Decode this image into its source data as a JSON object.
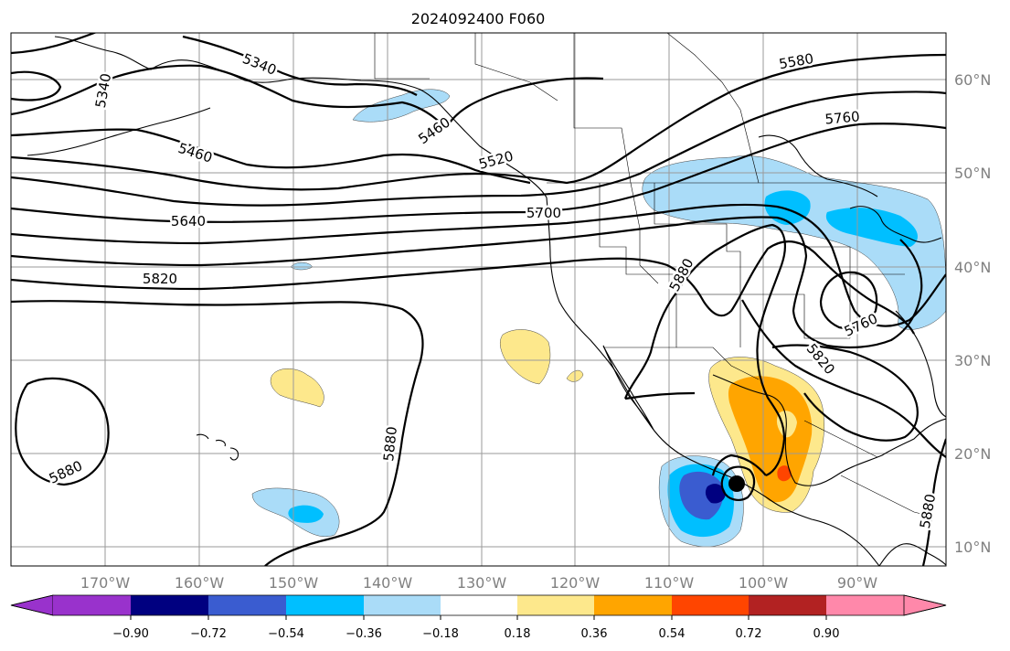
{
  "title": "2024092400 F060",
  "map": {
    "lon_labels": [
      "170°W",
      "160°W",
      "150°W",
      "140°W",
      "130°W",
      "120°W",
      "110°W",
      "100°W",
      "90°W"
    ],
    "lat_labels": [
      "60°N",
      "50°N",
      "40°N",
      "30°N",
      "20°N",
      "10°N"
    ],
    "contour_labels": [
      "5340",
      "5340",
      "5460",
      "5460",
      "5520",
      "5580",
      "5640",
      "5700",
      "5760",
      "5760",
      "5820",
      "5820",
      "5880",
      "5880",
      "5880",
      "5880"
    ],
    "gridlines": true,
    "colors": {
      "contour": "#000000",
      "grid": "#9a9a9a",
      "fill_neg_018": "#aadcf8",
      "fill_neg_036": "#00bfff",
      "fill_neg_054": "#3a5cd0",
      "fill_neg_072": "#000080",
      "fill_pos_018": "#fde88c",
      "fill_pos_036": "#ffa500",
      "fill_pos_054": "#ff4500"
    },
    "storm_marker": "filled-circle"
  },
  "colorbar": {
    "ticks": [
      "−0.90",
      "−0.72",
      "−0.54",
      "−0.36",
      "−0.18",
      "0.18",
      "0.36",
      "0.54",
      "0.72",
      "0.90"
    ],
    "colors": [
      "#9932cc",
      "#000080",
      "#3a5cd0",
      "#00bfff",
      "#aadcf8",
      "#ffffff",
      "#fde88c",
      "#ffa500",
      "#ff4500",
      "#b22222",
      "#ff88aa"
    ]
  }
}
